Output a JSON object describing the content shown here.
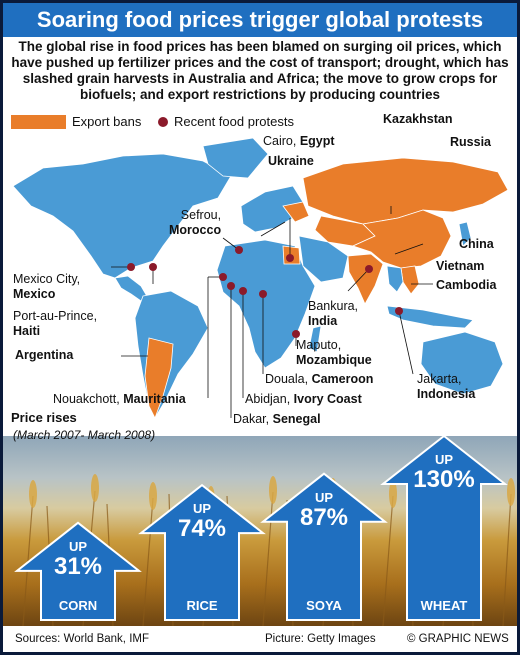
{
  "title": "Soaring food prices trigger global protests",
  "intro": "The global rise in food prices has been blamed on surging oil prices, which have pushed up fertilizer prices and the cost of transport; drought, which has slashed grain harvests in Australia and Africa; the move to grow crops for biofuels; and export restrictions by producing countries",
  "legend": {
    "export_bans": "Export bans",
    "protests": "Recent food protests"
  },
  "colors": {
    "title_bar": "#1f6fc0",
    "land": "#4a9bd5",
    "export_ban": "#e97d2a",
    "protest_dot": "#8b1a2a",
    "arrow": "#1f6fc0"
  },
  "export_ban_countries": [
    "Kazakhstan",
    "Russia",
    "Ukraine",
    "Egypt",
    "China",
    "Vietnam",
    "Cambodia",
    "India",
    "Argentina"
  ],
  "protests": [
    {
      "city": "Cairo,",
      "country": "Egypt"
    },
    {
      "city": "Sefrou,",
      "country": "Morocco"
    },
    {
      "city": "Mexico City,",
      "country": "Mexico"
    },
    {
      "city": "Port-au-Prince,",
      "country": "Haiti"
    },
    {
      "city": "Bankura,",
      "country": "India"
    },
    {
      "city": "Maputo,",
      "country": "Mozambique"
    },
    {
      "city": "Nouakchott,",
      "country": "Mauritania"
    },
    {
      "city": "Douala,",
      "country": "Cameroon"
    },
    {
      "city": "Abidjan,",
      "country": "Ivory Coast"
    },
    {
      "city": "Dakar,",
      "country": "Senegal"
    },
    {
      "city": "Jakarta,",
      "country": "Indonesia"
    }
  ],
  "price_rises": {
    "title": "Price rises",
    "period": "(March 2007- March 2008)",
    "items": [
      {
        "up": "UP",
        "pct": "31%",
        "crop": "CORN",
        "value": 31
      },
      {
        "up": "UP",
        "pct": "74%",
        "crop": "RICE",
        "value": 74
      },
      {
        "up": "UP",
        "pct": "87%",
        "crop": "SOYA",
        "value": 87
      },
      {
        "up": "UP",
        "pct": "130%",
        "crop": "WHEAT",
        "value": 130
      }
    ]
  },
  "footer": {
    "sources": "Sources: World Bank, IMF",
    "picture": "Picture: Getty Images",
    "credit": "© GRAPHIC NEWS"
  }
}
